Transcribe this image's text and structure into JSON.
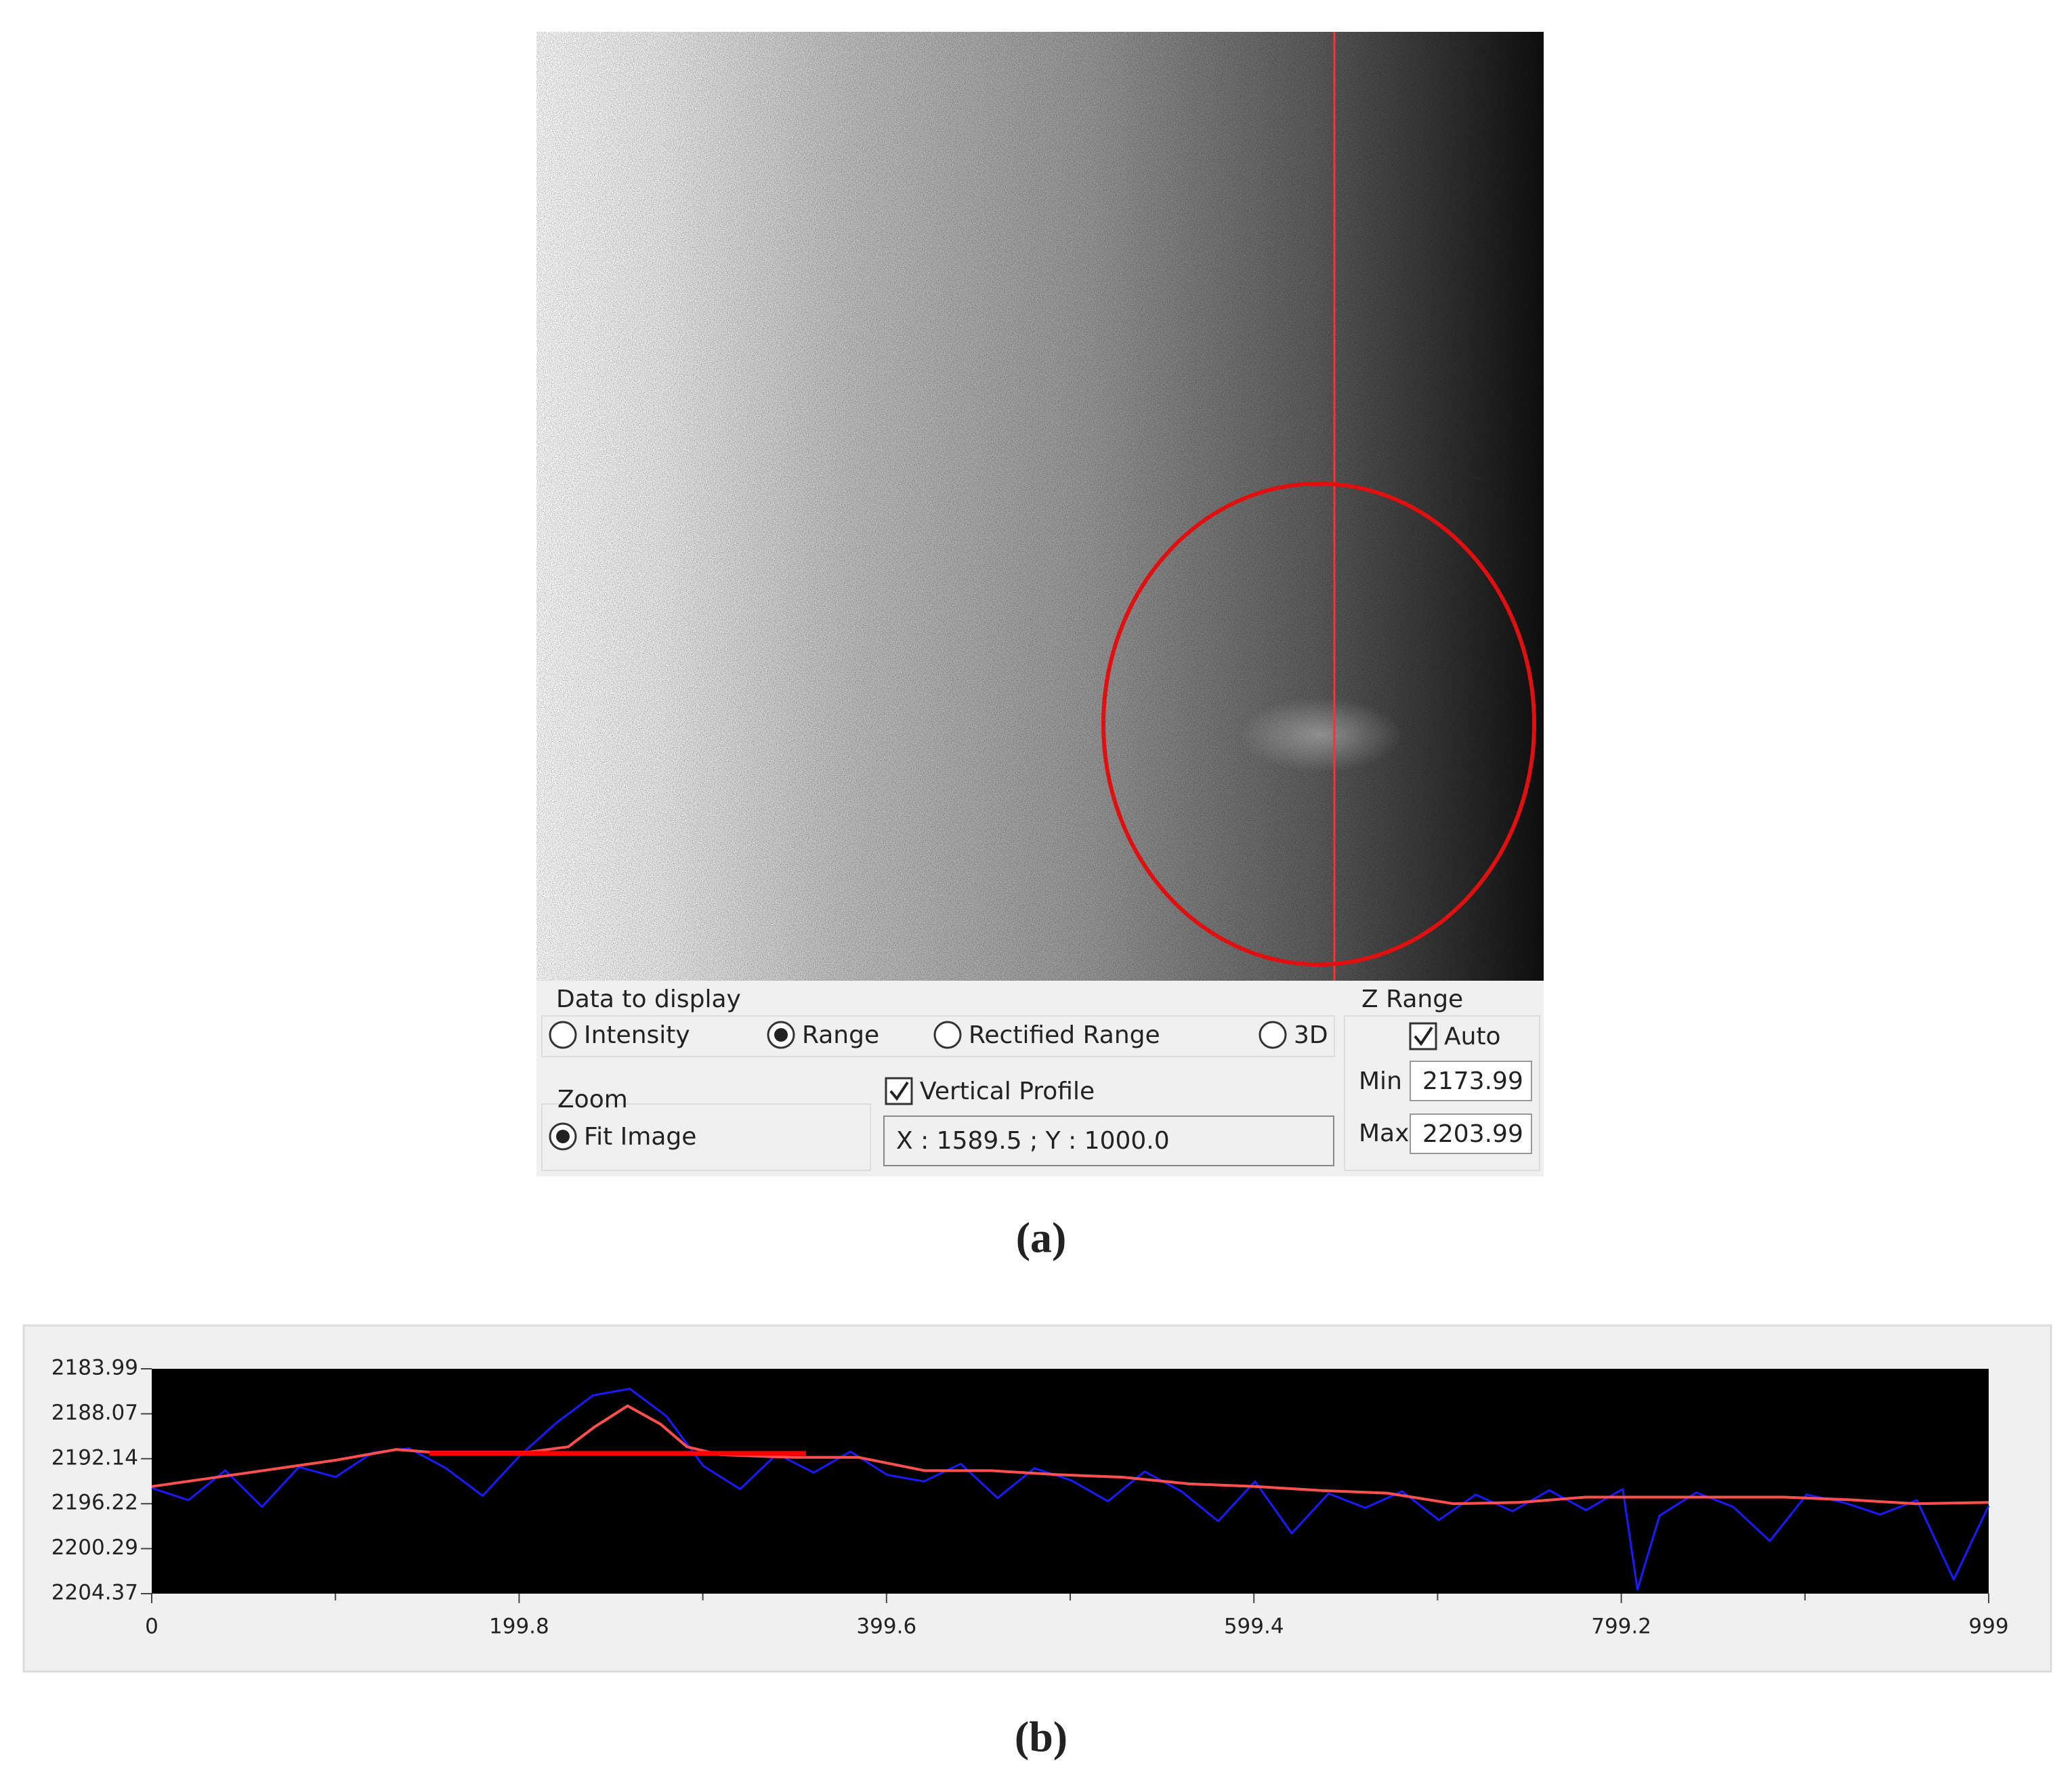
{
  "image_panel": {
    "controls": {
      "data_group": {
        "title": "Data to display",
        "options": [
          {
            "label": "Intensity",
            "selected": false
          },
          {
            "label": "Range",
            "selected": true
          },
          {
            "label": "Rectified Range",
            "selected": false
          },
          {
            "label": "3D",
            "selected": false
          }
        ]
      },
      "z_range": {
        "title": "Z Range",
        "auto": {
          "label": "Auto",
          "checked": true
        },
        "min_label": "Min",
        "min_value": "2173.99",
        "max_label": "Max",
        "max_value": "2203.99"
      },
      "zoom": {
        "title": "Zoom",
        "option": {
          "label": "Fit Image",
          "selected": true
        }
      },
      "profile": {
        "label": "Vertical Profile",
        "checked": true,
        "position": "X : 1589.5 ; Y : 1000.0"
      }
    }
  },
  "caption_a": "(a)",
  "caption_b": "(b)",
  "chart_data": {
    "type": "line",
    "background": "#000000",
    "xlim": [
      0,
      999
    ],
    "xticks": [
      0,
      199.8,
      399.6,
      599.4,
      799.2,
      999
    ],
    "xminorticks": [
      99.9,
      299.7,
      499.5,
      699.3,
      899.1
    ],
    "ylim": [
      2204.37,
      2183.99
    ],
    "yticks": [
      2183.99,
      2188.07,
      2192.14,
      2196.22,
      2200.29,
      2204.37
    ],
    "series": [
      {
        "color": "#1a1aff",
        "x": [
          0,
          20,
          40,
          60,
          80,
          100,
          120,
          140,
          160,
          180,
          200,
          220,
          240,
          260,
          280,
          300,
          320,
          340,
          360,
          380,
          400,
          420,
          440,
          460,
          480,
          500,
          520,
          540,
          560,
          580,
          600,
          620,
          640,
          660,
          680,
          700,
          720,
          740,
          760,
          780,
          800,
          808,
          820,
          840,
          860,
          880,
          900,
          920,
          940,
          960,
          980,
          999
        ],
        "values": [
          2194.8,
          2195.9,
          2193.2,
          2196.5,
          2192.9,
          2193.8,
          2191.6,
          2191.2,
          2193.0,
          2195.5,
          2191.9,
          2188.9,
          2186.4,
          2185.8,
          2188.3,
          2192.8,
          2194.9,
          2191.7,
          2193.4,
          2191.5,
          2193.6,
          2194.2,
          2192.6,
          2195.7,
          2193.0,
          2194.1,
          2196.0,
          2193.3,
          2195.1,
          2197.8,
          2194.2,
          2198.9,
          2195.3,
          2196.6,
          2195.1,
          2197.7,
          2195.4,
          2196.9,
          2195.0,
          2196.8,
          2194.9,
          2204.0,
          2197.3,
          2195.2,
          2196.5,
          2199.6,
          2195.4,
          2196.1,
          2197.2,
          2195.9,
          2203.1,
          2196.4
        ]
      },
      {
        "color": "#ff5050",
        "x": [
          0,
          50.3,
          100.6,
          133.0,
          151.0,
          204.9,
          226.5,
          240.8,
          258.8,
          276.8,
          291.1,
          309.1,
          348.6,
          384.5,
          420.5,
          456.4,
          492.3,
          528.3,
          564.2,
          600.1,
          636.1,
          672.0,
          707.9,
          743.9,
          779.8,
          815.7,
          851.7,
          887.6,
          923.5,
          959.5,
          999
        ],
        "values": [
          2194.66,
          2193.46,
          2192.26,
          2191.3,
          2191.54,
          2191.54,
          2191.06,
          2189.26,
          2187.35,
          2189.02,
          2191.06,
          2191.78,
          2192.02,
          2192.02,
          2193.22,
          2193.22,
          2193.58,
          2193.82,
          2194.42,
          2194.66,
          2195.02,
          2195.26,
          2196.22,
          2196.1,
          2195.62,
          2195.62,
          2195.62,
          2195.62,
          2195.86,
          2196.22,
          2196.1
        ]
      },
      {
        "color": "#ff0000",
        "x": [
          151.0,
          355.8
        ],
        "values": [
          2191.66,
          2191.66
        ]
      }
    ]
  }
}
